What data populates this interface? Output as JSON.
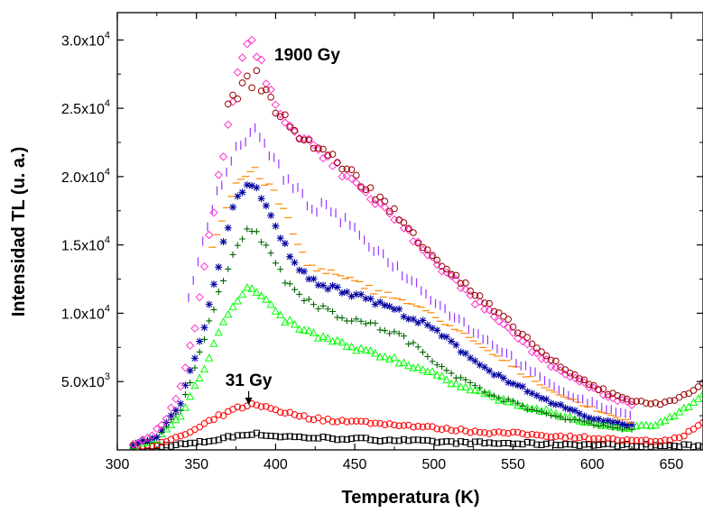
{
  "chart_data": {
    "type": "scatter",
    "xlabel": "Temperatura (K)",
    "ylabel": "Intensidad TL (u. a.)",
    "xlim": [
      300,
      670
    ],
    "ylim": [
      0,
      32000
    ],
    "grid": false,
    "x_ticks": [
      {
        "value": 300,
        "label": "300"
      },
      {
        "value": 350,
        "label": "350"
      },
      {
        "value": 400,
        "label": "400"
      },
      {
        "value": 450,
        "label": "450"
      },
      {
        "value": 500,
        "label": "500"
      },
      {
        "value": 550,
        "label": "550"
      },
      {
        "value": 600,
        "label": "600"
      },
      {
        "value": 650,
        "label": "650"
      }
    ],
    "y_ticks": [
      {
        "value": 5000,
        "mantissa": "5.0x10",
        "exp": "3"
      },
      {
        "value": 10000,
        "mantissa": "1.0x10",
        "exp": "4"
      },
      {
        "value": 15000,
        "mantissa": "1.5x10",
        "exp": "4"
      },
      {
        "value": 20000,
        "mantissa": "2.0x10",
        "exp": "4"
      },
      {
        "value": 25000,
        "mantissa": "2.5x10",
        "exp": "4"
      },
      {
        "value": 30000,
        "mantissa": "3.0x10",
        "exp": "4"
      }
    ],
    "annotations": [
      {
        "text": "1900 Gy",
        "x": 420,
        "y": 28500
      },
      {
        "text": "31 Gy",
        "x": 383,
        "y": 4700,
        "arrow_to": [
          383,
          3300
        ]
      }
    ],
    "series": [
      {
        "marker": "square-open",
        "color": "#000000",
        "x_range": [
          310,
          670
        ],
        "points": [
          [
            310,
            200
          ],
          [
            330,
            300
          ],
          [
            350,
            500
          ],
          [
            365,
            800
          ],
          [
            380,
            1150
          ],
          [
            390,
            1150
          ],
          [
            400,
            1000
          ],
          [
            420,
            900
          ],
          [
            450,
            800
          ],
          [
            480,
            700
          ],
          [
            500,
            600
          ],
          [
            530,
            500
          ],
          [
            560,
            450
          ],
          [
            590,
            400
          ],
          [
            620,
            350
          ],
          [
            650,
            300
          ],
          [
            670,
            300
          ]
        ]
      },
      {
        "marker": "circle-open",
        "color": "#ff0000",
        "x_range": [
          310,
          670
        ],
        "points": [
          [
            310,
            300
          ],
          [
            330,
            500
          ],
          [
            350,
            1500
          ],
          [
            365,
            2500
          ],
          [
            375,
            3000
          ],
          [
            383,
            3300
          ],
          [
            395,
            3100
          ],
          [
            410,
            2600
          ],
          [
            430,
            2200
          ],
          [
            460,
            2000
          ],
          [
            490,
            1700
          ],
          [
            520,
            1400
          ],
          [
            550,
            1200
          ],
          [
            580,
            1000
          ],
          [
            610,
            800
          ],
          [
            630,
            600
          ],
          [
            650,
            700
          ],
          [
            665,
            1500
          ],
          [
            670,
            2000
          ]
        ]
      },
      {
        "marker": "triangle-open",
        "color": "#00ff00",
        "x_range": [
          310,
          670
        ],
        "points": [
          [
            310,
            300
          ],
          [
            325,
            800
          ],
          [
            340,
            2500
          ],
          [
            355,
            6000
          ],
          [
            365,
            9000
          ],
          [
            375,
            11000
          ],
          [
            382,
            11800
          ],
          [
            392,
            11200
          ],
          [
            400,
            10000
          ],
          [
            410,
            9200
          ],
          [
            420,
            8600
          ],
          [
            435,
            8000
          ],
          [
            450,
            7400
          ],
          [
            470,
            6800
          ],
          [
            490,
            6000
          ],
          [
            510,
            5000
          ],
          [
            530,
            4200
          ],
          [
            550,
            3400
          ],
          [
            570,
            2800
          ],
          [
            590,
            2200
          ],
          [
            610,
            1800
          ],
          [
            625,
            1600
          ],
          [
            640,
            1900
          ],
          [
            655,
            2700
          ],
          [
            670,
            4000
          ]
        ]
      },
      {
        "marker": "plus",
        "color": "#006600",
        "x_range": [
          310,
          625
        ],
        "points": [
          [
            310,
            300
          ],
          [
            325,
            900
          ],
          [
            340,
            3000
          ],
          [
            355,
            8000
          ],
          [
            365,
            12000
          ],
          [
            375,
            15000
          ],
          [
            385,
            16300
          ],
          [
            395,
            15000
          ],
          [
            405,
            12500
          ],
          [
            420,
            11000
          ],
          [
            440,
            9800
          ],
          [
            460,
            9200
          ],
          [
            480,
            8300
          ],
          [
            500,
            6500
          ],
          [
            520,
            5000
          ],
          [
            540,
            3900
          ],
          [
            560,
            3000
          ],
          [
            580,
            2400
          ],
          [
            600,
            1900
          ],
          [
            625,
            1500
          ]
        ]
      },
      {
        "marker": "asterisk",
        "color": "#0000a0",
        "x_range": [
          310,
          625
        ],
        "points": [
          [
            310,
            300
          ],
          [
            325,
            1000
          ],
          [
            340,
            3500
          ],
          [
            355,
            9000
          ],
          [
            365,
            14000
          ],
          [
            372,
            17500
          ],
          [
            380,
            19500
          ],
          [
            387,
            19000
          ],
          [
            395,
            17500
          ],
          [
            405,
            15000
          ],
          [
            420,
            12500
          ],
          [
            440,
            11800
          ],
          [
            460,
            11000
          ],
          [
            480,
            10000
          ],
          [
            500,
            8800
          ],
          [
            520,
            7000
          ],
          [
            540,
            5500
          ],
          [
            560,
            4200
          ],
          [
            580,
            3200
          ],
          [
            600,
            2300
          ],
          [
            625,
            1800
          ]
        ]
      },
      {
        "marker": "dash",
        "color": "#ff8800",
        "x_range": [
          360,
          625
        ],
        "points": [
          [
            360,
            15000
          ],
          [
            375,
            19500
          ],
          [
            385,
            20500
          ],
          [
            395,
            19500
          ],
          [
            405,
            17500
          ],
          [
            420,
            13500
          ],
          [
            440,
            12700
          ],
          [
            460,
            11800
          ],
          [
            480,
            11000
          ],
          [
            500,
            9800
          ],
          [
            520,
            8300
          ],
          [
            540,
            6800
          ],
          [
            560,
            5300
          ],
          [
            580,
            4000
          ],
          [
            600,
            3000
          ],
          [
            625,
            2000
          ]
        ]
      },
      {
        "marker": "vbar",
        "color": "#9933ff",
        "x_range": [
          345,
          625
        ],
        "points": [
          [
            345,
            11000
          ],
          [
            360,
            18000
          ],
          [
            375,
            22000
          ],
          [
            385,
            23500
          ],
          [
            395,
            22000
          ],
          [
            405,
            20000
          ],
          [
            420,
            18000
          ],
          [
            435,
            17500
          ],
          [
            450,
            16000
          ],
          [
            470,
            14000
          ],
          [
            490,
            12000
          ],
          [
            510,
            10000
          ],
          [
            530,
            8300
          ],
          [
            550,
            6700
          ],
          [
            570,
            5000
          ],
          [
            590,
            3800
          ],
          [
            610,
            3000
          ],
          [
            625,
            2500
          ]
        ]
      },
      {
        "marker": "diamond-open",
        "color": "#ff33cc",
        "x_range": [
          310,
          625
        ],
        "points": [
          [
            310,
            400
          ],
          [
            320,
            900
          ],
          [
            330,
            2000
          ],
          [
            340,
            4500
          ],
          [
            350,
            9500
          ],
          [
            360,
            17000
          ],
          [
            370,
            24000
          ],
          [
            378,
            28800
          ],
          [
            383,
            30000
          ],
          [
            390,
            28500
          ],
          [
            395,
            27000
          ],
          [
            400,
            25000
          ],
          [
            410,
            23500
          ],
          [
            425,
            22000
          ],
          [
            440,
            20500
          ],
          [
            460,
            18500
          ],
          [
            475,
            17000
          ],
          [
            490,
            15000
          ],
          [
            500,
            14000
          ],
          [
            510,
            12700
          ],
          [
            520,
            11500
          ],
          [
            535,
            10000
          ],
          [
            550,
            8500
          ],
          [
            565,
            7000
          ],
          [
            580,
            5800
          ],
          [
            595,
            4800
          ],
          [
            610,
            3900
          ],
          [
            625,
            3300
          ]
        ]
      },
      {
        "marker": "circle-open",
        "color": "#990000",
        "x_range": [
          370,
          670
        ],
        "points": [
          [
            370,
            25000
          ],
          [
            378,
            26500
          ],
          [
            388,
            27300
          ],
          [
            395,
            26000
          ],
          [
            400,
            25000
          ],
          [
            410,
            23500
          ],
          [
            425,
            22200
          ],
          [
            440,
            21000
          ],
          [
            460,
            19000
          ],
          [
            475,
            17300
          ],
          [
            490,
            15500
          ],
          [
            500,
            14200
          ],
          [
            510,
            13000
          ],
          [
            520,
            12000
          ],
          [
            535,
            10500
          ],
          [
            550,
            9000
          ],
          [
            565,
            7500
          ],
          [
            580,
            6000
          ],
          [
            595,
            5000
          ],
          [
            610,
            4200
          ],
          [
            625,
            3600
          ],
          [
            640,
            3400
          ],
          [
            655,
            3700
          ],
          [
            670,
            4900
          ]
        ]
      }
    ]
  }
}
